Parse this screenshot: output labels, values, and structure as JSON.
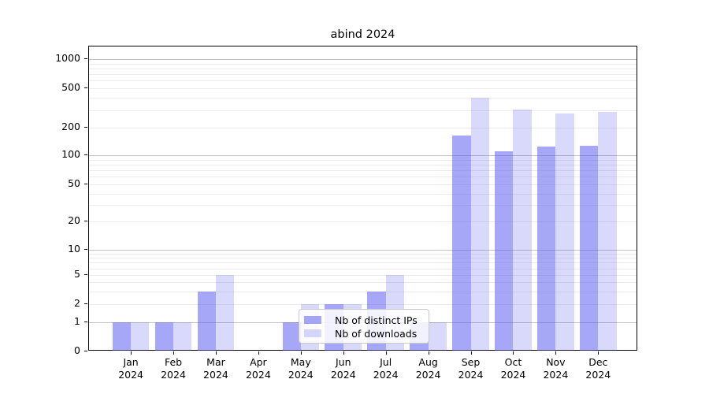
{
  "title": "abind 2024",
  "colors": {
    "bar_ips": "rgba(80,80,240,0.5)",
    "bar_downloads": "rgba(80,80,240,0.22)",
    "grid_major": "#c2c2c2",
    "grid_minor": "#ebebeb",
    "spine": "#000000"
  },
  "legend": {
    "items": [
      {
        "label": "Nb of distinct IPs",
        "color_key": "bar_ips"
      },
      {
        "label": "Nb of downloads",
        "color_key": "bar_downloads"
      }
    ]
  },
  "chart_data": {
    "type": "bar",
    "title": "abind 2024",
    "categories": [
      "Jan 2024",
      "Feb 2024",
      "Mar 2024",
      "Apr 2024",
      "May 2024",
      "Jun 2024",
      "Jul 2024",
      "Aug 2024",
      "Sep 2024",
      "Oct 2024",
      "Nov 2024",
      "Dec 2024"
    ],
    "series": [
      {
        "name": "Nb of distinct IPs",
        "values": [
          1,
          1,
          3,
          0,
          1,
          2,
          3,
          1,
          165,
          110,
          124,
          128
        ]
      },
      {
        "name": "Nb of downloads",
        "values": [
          1,
          1,
          5,
          0,
          2,
          2,
          5,
          1,
          400,
          305,
          280,
          290
        ]
      }
    ],
    "yscale": "log (0 baseline)",
    "y_tick_labels": [
      0,
      1,
      2,
      5,
      10,
      20,
      50,
      100,
      200,
      500,
      1000
    ],
    "ylim": [
      0,
      1350
    ],
    "grid": "on (dark lines at powers of 10, light minor lines)",
    "legend_position": "bottom center, inside plot"
  }
}
